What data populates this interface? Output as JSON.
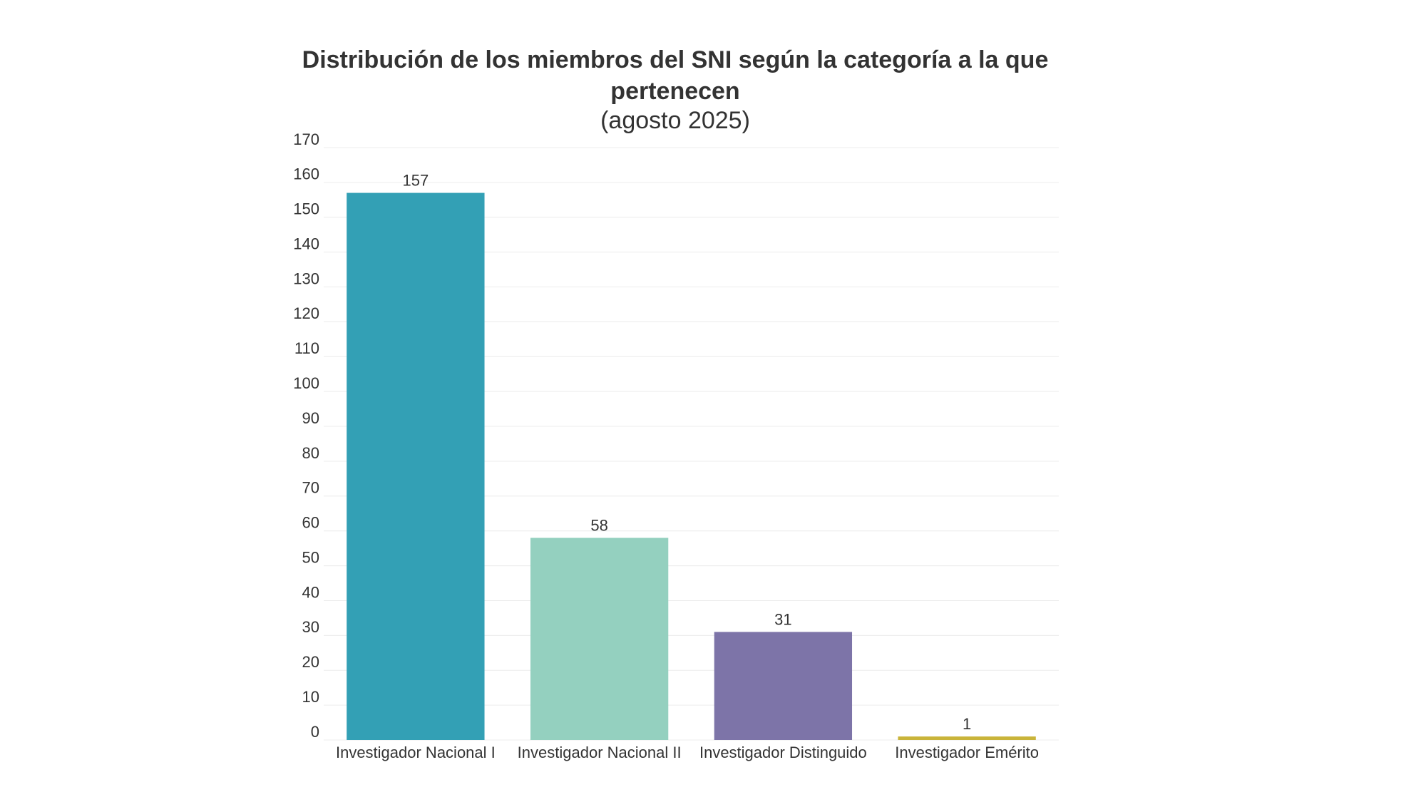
{
  "chart_data": {
    "type": "bar",
    "title": "Distribución de los miembros del SNI según la categoría a la que pertenecen",
    "subtitle": "(agosto 2025)",
    "categories": [
      "Investigador Nacional I",
      "Investigador Nacional II",
      "Investigador Distinguido",
      "Investigador Emérito"
    ],
    "values": [
      157,
      58,
      31,
      1
    ],
    "colors": [
      "#33a0b5",
      "#94d0bf",
      "#7d74a8",
      "#c9b43a"
    ],
    "ylim": [
      0,
      170
    ],
    "yticks": [
      0,
      10,
      20,
      30,
      40,
      50,
      60,
      70,
      80,
      90,
      100,
      110,
      120,
      130,
      140,
      150,
      160,
      170
    ],
    "grid": true
  }
}
